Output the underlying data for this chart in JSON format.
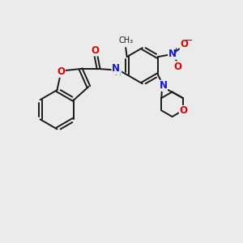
{
  "background_color": "#ebebeb",
  "bond_color": "#1a1a1a",
  "oxygen_color": "#e00000",
  "nitrogen_color": "#1414e0",
  "figsize": [
    3.0,
    3.0
  ],
  "dpi": 100,
  "xlim": [
    0,
    10
  ],
  "ylim": [
    0,
    10
  ]
}
